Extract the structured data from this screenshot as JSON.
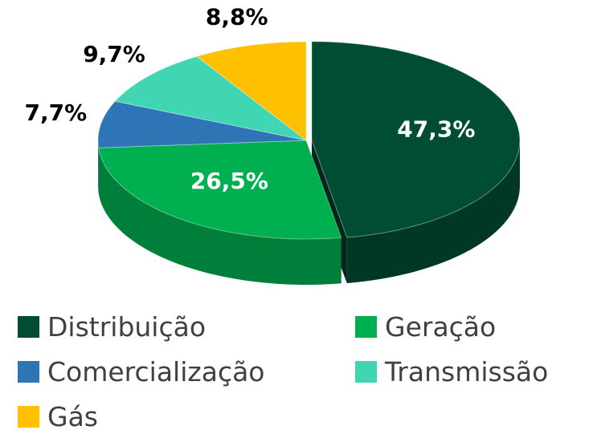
{
  "chart_data": {
    "type": "pie",
    "categories": [
      "Distribuição",
      "Geração",
      "Comercialização",
      "Transmissão",
      "Gás"
    ],
    "values": [
      47.3,
      26.5,
      7.7,
      9.7,
      8.8
    ],
    "value_labels": [
      "47,3%",
      "26,5%",
      "7,7%",
      "9,7%",
      "8,8%"
    ],
    "colors": [
      "#004d33",
      "#00b050",
      "#2e75b6",
      "#40d6b4",
      "#ffc000"
    ],
    "legend": "bottom"
  }
}
